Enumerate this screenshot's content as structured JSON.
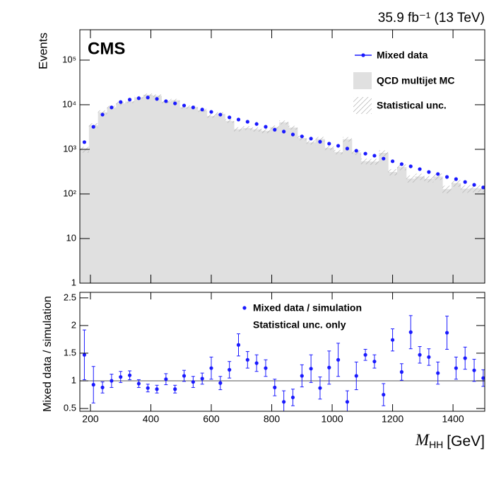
{
  "chart_data": [
    {
      "type": "log-histogram",
      "title": "35.9 fb⁻¹ (13 TeV)",
      "experiment": "CMS",
      "ylabel": "Events",
      "log_y": true,
      "legend": "top-right",
      "x": [
        180,
        210,
        240,
        270,
        300,
        330,
        360,
        390,
        420,
        450,
        480,
        510,
        540,
        570,
        600,
        630,
        660,
        690,
        720,
        750,
        780,
        810,
        840,
        870,
        900,
        930,
        960,
        990,
        1020,
        1050,
        1080,
        1110,
        1140,
        1170,
        1200,
        1230,
        1260,
        1290,
        1320,
        1350,
        1380,
        1410,
        1440,
        1470,
        1500
      ],
      "xlim": [
        165,
        1505
      ],
      "ylim": [
        1,
        480000
      ],
      "yticks": [
        {
          "value": 1,
          "label": "1"
        },
        {
          "value": 10,
          "label": "10"
        },
        {
          "value": 100,
          "label": "10²"
        },
        {
          "value": 1000,
          "label": "10³"
        },
        {
          "value": 10000,
          "label": "10⁴"
        },
        {
          "value": 100000,
          "label": "10⁵"
        }
      ],
      "series": [
        {
          "name": "Mixed data",
          "color": "#1a1aff",
          "values": [
            1450,
            3200,
            6000,
            8700,
            11500,
            13000,
            14000,
            14500,
            13500,
            12000,
            10700,
            9600,
            8700,
            7800,
            6900,
            6000,
            5200,
            4650,
            4150,
            3700,
            3200,
            2750,
            2500,
            2150,
            1950,
            1740,
            1480,
            1340,
            1200,
            1040,
            930,
            800,
            720,
            620,
            540,
            465,
            415,
            360,
            310,
            280,
            240,
            215,
            185,
            160,
            140
          ]
        },
        {
          "name": "QCD multijet MC",
          "color": "#e0e0e0",
          "values": [
            990,
            3440,
            6800,
            8700,
            10700,
            11800,
            14700,
            16700,
            15900,
            11700,
            12600,
            8800,
            8900,
            7500,
            5600,
            6250,
            4330,
            2820,
            3000,
            2800,
            2600,
            3130,
            4030,
            3070,
            1790,
            1430,
            1700,
            1080,
            870,
            1680,
            850,
            540,
            530,
            830,
            310,
            400,
            220,
            245,
            217,
            245,
            128,
            175,
            131,
            134,
            133
          ]
        },
        {
          "name": "Statistical unc.",
          "color": "#b0b0b0",
          "values": [
            150,
            400,
            700,
            800,
            900,
            900,
            1000,
            1100,
            1100,
            900,
            900,
            700,
            700,
            600,
            500,
            500,
            400,
            300,
            300,
            300,
            300,
            300,
            400,
            300,
            200,
            150,
            200,
            120,
            100,
            200,
            100,
            80,
            80,
            120,
            50,
            60,
            40,
            40,
            35,
            40,
            25,
            30,
            25,
            25,
            25
          ]
        }
      ]
    },
    {
      "type": "ratio",
      "ylabel": "Mixed data / simulation",
      "xlabel": {
        "symbol": "M",
        "subscript": "HH",
        "unit": "[GeV]"
      },
      "annotation": "Statistical unc. only",
      "reference": 1,
      "x": [
        180,
        210,
        240,
        270,
        300,
        330,
        360,
        390,
        420,
        450,
        480,
        510,
        540,
        570,
        600,
        630,
        660,
        690,
        720,
        750,
        780,
        810,
        840,
        870,
        900,
        930,
        960,
        990,
        1020,
        1050,
        1080,
        1110,
        1140,
        1170,
        1200,
        1230,
        1260,
        1290,
        1320,
        1350,
        1380,
        1410,
        1440,
        1470,
        1500
      ],
      "xlim": [
        165,
        1505
      ],
      "xticks": [
        200,
        400,
        600,
        800,
        1000,
        1200,
        1400
      ],
      "ylim": [
        0.45,
        2.6
      ],
      "yticks": [
        0.5,
        1,
        1.5,
        2,
        2.5
      ],
      "series": [
        {
          "name": "Mixed data / simulation",
          "color": "#1a1aff",
          "values": [
            1.47,
            0.93,
            0.88,
            1.0,
            1.07,
            1.1,
            0.95,
            0.87,
            0.85,
            1.03,
            0.85,
            1.09,
            0.98,
            1.04,
            1.23,
            0.96,
            1.2,
            1.65,
            1.38,
            1.32,
            1.23,
            0.88,
            0.62,
            0.7,
            1.09,
            1.22,
            0.87,
            1.24,
            1.38,
            0.62,
            1.09,
            1.47,
            1.35,
            0.75,
            1.74,
            1.16,
            1.88,
            1.47,
            1.43,
            1.14,
            1.87,
            1.23,
            1.41,
            1.19,
            1.05
          ],
          "errors": [
            0.45,
            0.33,
            0.1,
            0.12,
            0.1,
            0.08,
            0.07,
            0.07,
            0.07,
            0.1,
            0.07,
            0.1,
            0.1,
            0.1,
            0.2,
            0.12,
            0.15,
            0.2,
            0.15,
            0.15,
            0.15,
            0.15,
            0.2,
            0.15,
            0.2,
            0.25,
            0.2,
            0.3,
            0.3,
            0.2,
            0.25,
            0.1,
            0.12,
            0.2,
            0.2,
            0.15,
            0.3,
            0.15,
            0.15,
            0.2,
            0.3,
            0.2,
            0.2,
            0.2,
            0.15
          ]
        }
      ]
    }
  ]
}
